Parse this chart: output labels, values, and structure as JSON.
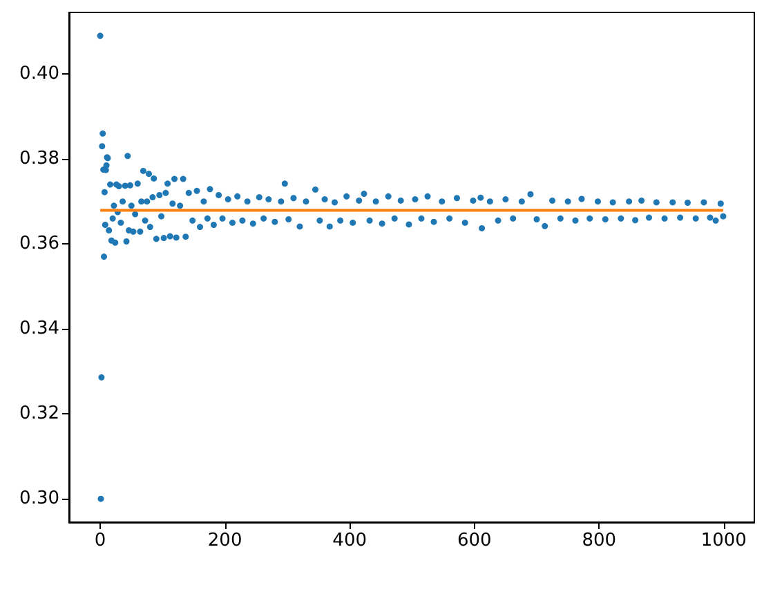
{
  "chart_data": {
    "type": "scatter",
    "xlim": [
      -49.95,
      1048.95
    ],
    "ylim": [
      0.2945,
      0.4145
    ],
    "xticks": [
      0,
      200,
      400,
      600,
      800,
      1000
    ],
    "yticks": [
      {
        "value": 0.3,
        "label": "0.30"
      },
      {
        "value": 0.32,
        "label": "0.32"
      },
      {
        "value": 0.34,
        "label": "0.34"
      },
      {
        "value": 0.36,
        "label": "0.36"
      },
      {
        "value": 0.38,
        "label": "0.38"
      },
      {
        "value": 0.4,
        "label": "0.40"
      }
    ],
    "marker": "circle",
    "series": [
      {
        "color": "#1f77b4",
        "x": [
          0,
          1,
          2,
          3,
          4,
          5,
          6,
          7,
          8,
          9,
          10,
          11,
          12,
          14,
          16,
          18,
          20,
          22,
          24,
          26,
          28,
          30,
          33,
          36,
          40,
          42,
          44,
          46,
          48,
          50,
          53,
          56,
          60,
          64,
          66,
          69,
          72,
          75,
          78,
          80,
          84,
          86,
          90,
          95,
          98,
          102,
          105,
          108,
          112,
          116,
          119,
          122,
          128,
          133,
          137,
          142,
          148,
          155,
          160,
          166,
          172,
          176,
          182,
          190,
          196,
          205,
          212,
          220,
          228,
          236,
          245,
          255,
          262,
          270,
          280,
          290,
          296,
          302,
          310,
          320,
          330,
          345,
          352,
          360,
          368,
          376,
          385,
          395,
          405,
          415,
          423,
          432,
          442,
          452,
          462,
          472,
          482,
          495,
          505,
          515,
          525,
          535,
          548,
          560,
          572,
          585,
          598,
          610,
          612,
          625,
          638,
          650,
          662,
          676,
          690,
          700,
          713,
          725,
          738,
          750,
          762,
          772,
          785,
          798,
          810,
          822,
          835,
          848,
          858,
          868,
          880,
          892,
          905,
          918,
          930,
          942,
          955,
          968,
          978,
          987,
          995,
          999
        ],
        "values": [
          0.409,
          0.3,
          0.3286,
          0.383,
          0.386,
          0.3775,
          0.357,
          0.3722,
          0.3645,
          0.3774,
          0.3785,
          0.3804,
          0.3802,
          0.3632,
          0.374,
          0.3608,
          0.366,
          0.369,
          0.3603,
          0.374,
          0.3675,
          0.3736,
          0.365,
          0.37,
          0.3737,
          0.3606,
          0.3807,
          0.3632,
          0.3738,
          0.369,
          0.3629,
          0.367,
          0.3742,
          0.3629,
          0.37,
          0.3772,
          0.3655,
          0.37,
          0.3765,
          0.364,
          0.371,
          0.3754,
          0.3612,
          0.3715,
          0.3665,
          0.3614,
          0.372,
          0.3742,
          0.3618,
          0.3695,
          0.3753,
          0.3615,
          0.369,
          0.3753,
          0.3617,
          0.372,
          0.3655,
          0.3725,
          0.364,
          0.37,
          0.366,
          0.3729,
          0.3645,
          0.3715,
          0.366,
          0.3705,
          0.365,
          0.3712,
          0.3655,
          0.37,
          0.3648,
          0.371,
          0.366,
          0.3705,
          0.3652,
          0.37,
          0.3742,
          0.3658,
          0.3708,
          0.3641,
          0.37,
          0.3728,
          0.3655,
          0.3705,
          0.3641,
          0.3698,
          0.3655,
          0.3712,
          0.365,
          0.3702,
          0.3718,
          0.3655,
          0.37,
          0.3648,
          0.3712,
          0.366,
          0.3702,
          0.3646,
          0.3705,
          0.366,
          0.3712,
          0.3652,
          0.37,
          0.366,
          0.3708,
          0.365,
          0.3702,
          0.3709,
          0.3637,
          0.37,
          0.3655,
          0.3705,
          0.366,
          0.37,
          0.3717,
          0.3658,
          0.3642,
          0.3702,
          0.366,
          0.37,
          0.3655,
          0.3706,
          0.366,
          0.37,
          0.3658,
          0.3698,
          0.366,
          0.37,
          0.3656,
          0.3702,
          0.3662,
          0.3698,
          0.366,
          0.3698,
          0.3662,
          0.3697,
          0.366,
          0.3698,
          0.3662,
          0.3655,
          0.3695,
          0.3665
        ]
      },
      {
        "type": "line",
        "color": "#ff7f0e",
        "marker": "none",
        "x": [
          0,
          999
        ],
        "values": [
          0.3679,
          0.3679
        ]
      }
    ]
  }
}
